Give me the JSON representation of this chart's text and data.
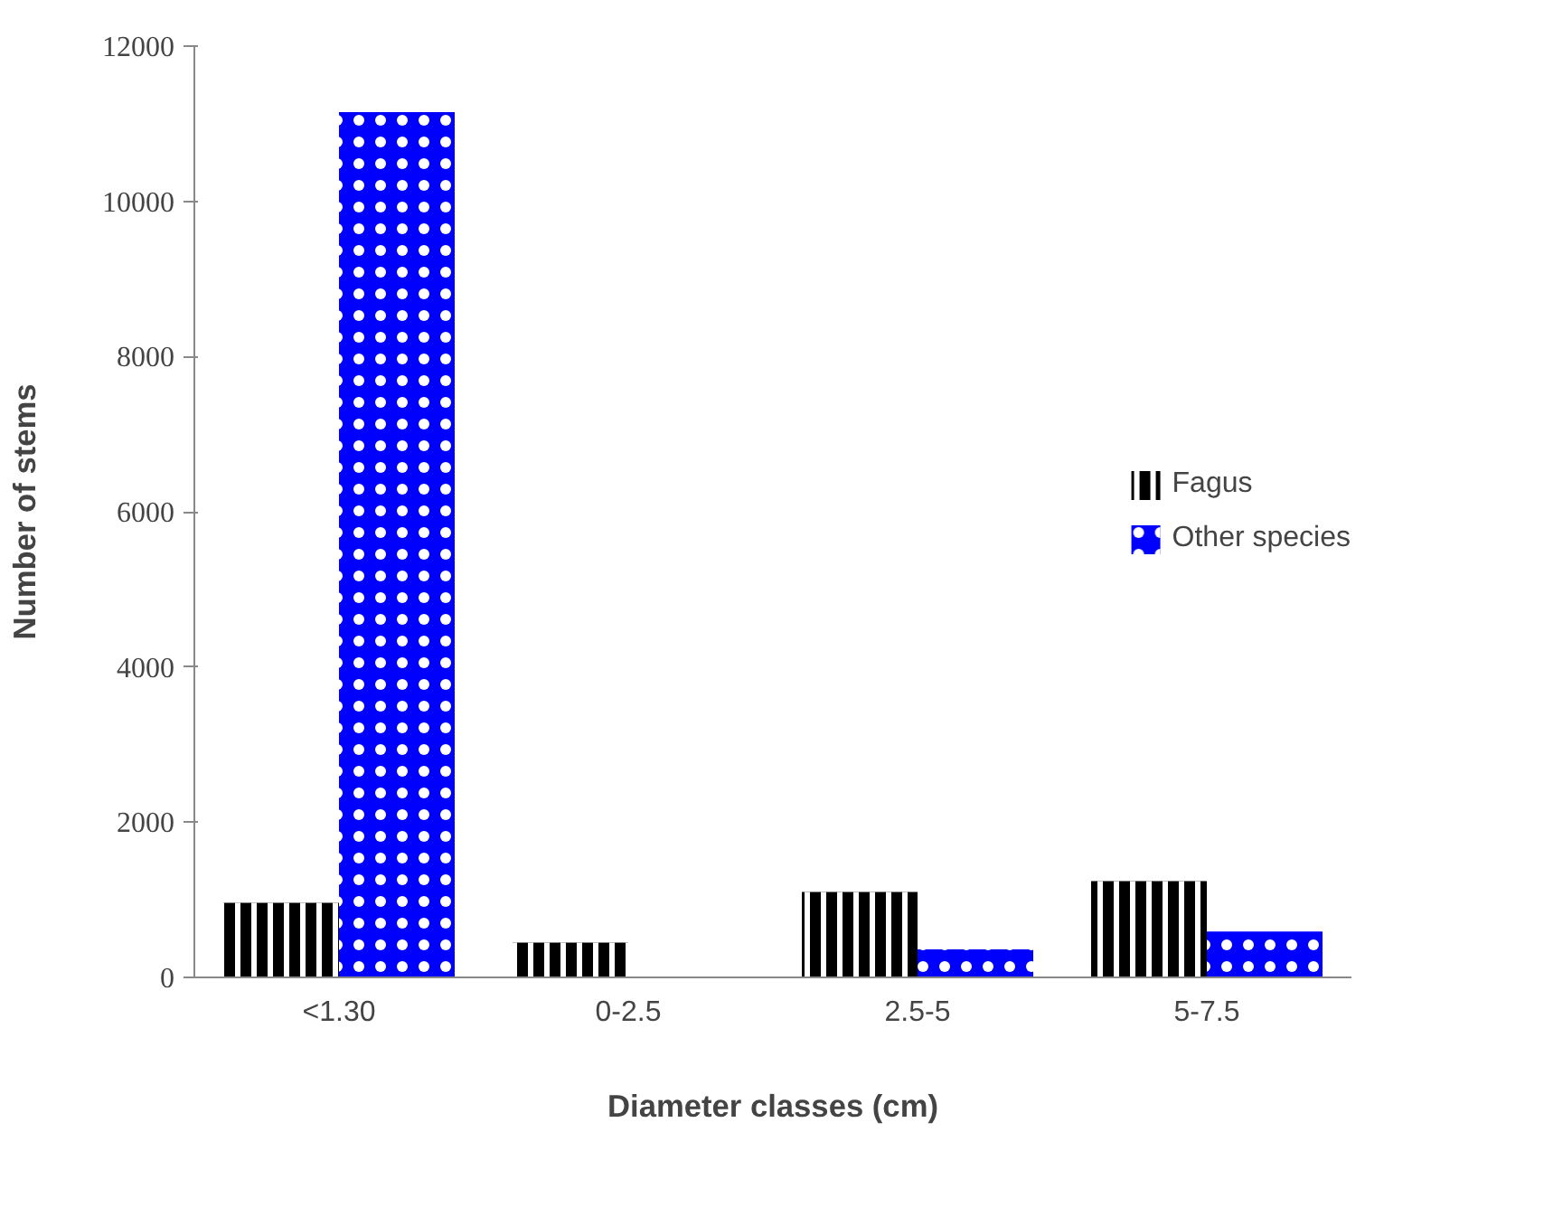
{
  "chart_data": {
    "type": "bar",
    "xlabel": "Diameter classes (cm)",
    "ylabel": "Number of stems",
    "categories": [
      "<1.30",
      "0-2.5",
      "2.5-5",
      "5-7.5"
    ],
    "series": [
      {
        "name": "Fagus",
        "color": "#000000",
        "values": [
          960,
          450,
          1100,
          1240
        ]
      },
      {
        "name": "Other species",
        "color": "#0000ff",
        "values": [
          11150,
          0,
          360,
          590
        ]
      }
    ],
    "ylim": [
      0,
      12000
    ],
    "yticks": [
      0,
      2000,
      4000,
      6000,
      8000,
      10000,
      12000
    ],
    "grid": false,
    "legend": "right"
  }
}
